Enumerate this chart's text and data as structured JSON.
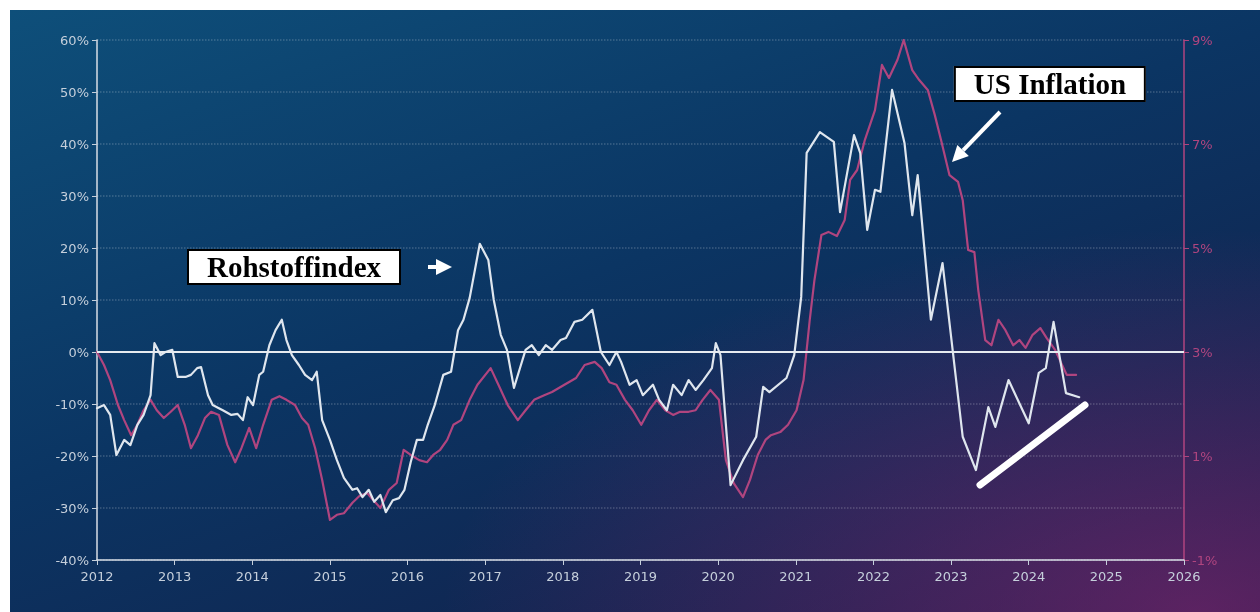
{
  "chart_data": {
    "type": "line",
    "xlim": [
      2012,
      2026
    ],
    "xticks": [
      2012,
      2013,
      2014,
      2015,
      2016,
      2017,
      2018,
      2019,
      2020,
      2021,
      2022,
      2023,
      2024,
      2025,
      2026
    ],
    "ylim": [
      -40,
      60
    ],
    "yticks": [
      {
        "value": -40,
        "label": "-40%"
      },
      {
        "value": -30,
        "label": "-30%"
      },
      {
        "value": -20,
        "label": "-20%"
      },
      {
        "value": -10,
        "label": "-10%"
      },
      {
        "value": 0,
        "label": "0%"
      },
      {
        "value": 10,
        "label": "10%"
      },
      {
        "value": 20,
        "label": "20%"
      },
      {
        "value": 30,
        "label": "30%"
      },
      {
        "value": 40,
        "label": "40%"
      },
      {
        "value": 50,
        "label": "50%"
      },
      {
        "value": 60,
        "label": "60%"
      }
    ],
    "y2lim": [
      -1,
      9
    ],
    "y2ticks": [
      {
        "value": -1,
        "label": "-1%"
      },
      {
        "value": 1,
        "label": "1%"
      },
      {
        "value": 3,
        "label": "3%"
      },
      {
        "value": 5,
        "label": "5%"
      },
      {
        "value": 7,
        "label": "7%"
      },
      {
        "value": 9,
        "label": "9%"
      }
    ],
    "grid": "y",
    "marker": "none",
    "line_style": "solid",
    "ref_lines": [
      {
        "axis": "y",
        "value": 0,
        "label": null,
        "color": "#e6ebf0"
      }
    ],
    "annotations": [
      "Rohstoffindex",
      "US Inflation"
    ],
    "series": [
      {
        "color": "#dfe6ee",
        "x": [
          2012.0,
          2012.09,
          2012.17,
          2012.25,
          2012.35,
          2012.43,
          2012.52,
          2012.6,
          2012.69,
          2012.74,
          2012.82,
          2012.88,
          2012.97,
          2013.04,
          2013.14,
          2013.21,
          2013.29,
          2013.34,
          2013.43,
          2013.49,
          2013.57,
          2013.62,
          2013.73,
          2013.81,
          2013.88,
          2013.94,
          2014.01,
          2014.09,
          2014.14,
          2014.22,
          2014.3,
          2014.38,
          2014.44,
          2014.51,
          2014.6,
          2014.68,
          2014.77,
          2014.83,
          2014.9,
          2015.0,
          2015.09,
          2015.18,
          2015.29,
          2015.35,
          2015.42,
          2015.5,
          2015.57,
          2015.65,
          2015.72,
          2015.81,
          2015.89,
          2015.96,
          2016.04,
          2016.12,
          2016.2,
          2016.26,
          2016.35,
          2016.46,
          2016.56,
          2016.65,
          2016.72,
          2016.8,
          2016.93,
          2017.04,
          2017.11,
          2017.2,
          2017.28,
          2017.37,
          2017.46,
          2017.52,
          2017.6,
          2017.69,
          2017.78,
          2017.86,
          2017.97,
          2018.04,
          2018.15,
          2018.25,
          2018.38,
          2018.49,
          2018.6,
          2018.69,
          2018.75,
          2018.86,
          2018.95,
          2019.03,
          2019.16,
          2019.24,
          2019.34,
          2019.42,
          2019.53,
          2019.62,
          2019.71,
          2019.81,
          2019.92,
          2019.97,
          2020.03,
          2020.16,
          2020.32,
          2020.49,
          2020.58,
          2020.66,
          2020.88,
          2020.98,
          2021.07,
          2021.14,
          2021.31,
          2021.49,
          2021.57,
          2021.75,
          2021.83,
          2021.92,
          2022.02,
          2022.09,
          2022.24,
          2022.4,
          2022.5,
          2022.57,
          2022.74,
          2022.89,
          2023.02,
          2023.15,
          2023.32,
          2023.48,
          2023.57,
          2023.74,
          2024.0,
          2024.13,
          2024.22,
          2024.32,
          2024.48,
          2024.65
        ],
        "values": [
          -10.8,
          -10.2,
          -12.1,
          -19.8,
          -16.9,
          -17.9,
          -14.0,
          -12.1,
          -8.3,
          1.7,
          -0.6,
          0,
          0.4,
          -4.8,
          -4.8,
          -4.4,
          -3.1,
          -2.9,
          -8.3,
          -10.2,
          -10.8,
          -11.2,
          -12.1,
          -11.9,
          -13.1,
          -8.7,
          -10.2,
          -4.4,
          -3.8,
          1.3,
          4.2,
          6.2,
          2.3,
          -0.6,
          -2.5,
          -4.4,
          -5.4,
          -3.8,
          -13.1,
          -16.9,
          -20.8,
          -24.2,
          -26.5,
          -26.2,
          -27.9,
          -26.5,
          -28.8,
          -27.5,
          -30.8,
          -28.5,
          -28.1,
          -26.5,
          -21.2,
          -16.9,
          -16.9,
          -14.0,
          -10.2,
          -4.4,
          -3.8,
          4.2,
          6.2,
          10.4,
          20.8,
          17.7,
          10.0,
          3.3,
          0.4,
          -6.9,
          -2.5,
          0.4,
          1.3,
          -0.6,
          1.3,
          0.4,
          2.3,
          2.7,
          5.8,
          6.2,
          8.1,
          0,
          -2.5,
          0,
          -1.9,
          -6.3,
          -5.4,
          -8.3,
          -6.3,
          -9.2,
          -11.2,
          -6.3,
          -8.3,
          -5.4,
          -7.3,
          -5.4,
          -3.1,
          1.7,
          -0.6,
          -25.6,
          -20.8,
          -16.3,
          -6.7,
          -7.7,
          -5.0,
          -0.6,
          10.6,
          38.3,
          42.3,
          40.4,
          26.9,
          41.7,
          38.3,
          23.5,
          31.2,
          30.8,
          50.4,
          40.2,
          26.3,
          34.0,
          6.2,
          17.1,
          0.4,
          -16.3,
          -22.7,
          -10.6,
          -14.4,
          -5.4,
          -13.7,
          -4.0,
          -3.1,
          5.8,
          -7.9,
          -8.7
        ]
      },
      {
        "color": "#b0457f",
        "axis": "y2",
        "x": [
          2012.0,
          2012.09,
          2012.17,
          2012.27,
          2012.35,
          2012.44,
          2012.52,
          2012.6,
          2012.69,
          2012.77,
          2012.86,
          2012.95,
          2013.04,
          2013.13,
          2013.21,
          2013.3,
          2013.39,
          2013.47,
          2013.57,
          2013.68,
          2013.78,
          2013.86,
          2013.96,
          2014.05,
          2014.14,
          2014.25,
          2014.35,
          2014.44,
          2014.55,
          2014.64,
          2014.72,
          2014.81,
          2014.9,
          2015.0,
          2015.09,
          2015.18,
          2015.29,
          2015.38,
          2015.48,
          2015.56,
          2015.65,
          2015.76,
          2015.86,
          2015.95,
          2016.04,
          2016.15,
          2016.25,
          2016.33,
          2016.42,
          2016.51,
          2016.59,
          2016.69,
          2016.8,
          2016.9,
          2017.07,
          2017.17,
          2017.29,
          2017.42,
          2017.52,
          2017.63,
          2017.76,
          2017.86,
          2018.02,
          2018.17,
          2018.28,
          2018.41,
          2018.5,
          2018.6,
          2018.69,
          2018.8,
          2018.9,
          2019.01,
          2019.11,
          2019.21,
          2019.32,
          2019.42,
          2019.51,
          2019.62,
          2019.71,
          2019.8,
          2019.9,
          2020.01,
          2020.1,
          2020.2,
          2020.32,
          2020.41,
          2020.51,
          2020.61,
          2020.68,
          2020.8,
          2020.9,
          2021.01,
          2021.1,
          2021.18,
          2021.24,
          2021.33,
          2021.42,
          2021.53,
          2021.63,
          2021.7,
          2021.79,
          2021.89,
          2022.02,
          2022.11,
          2022.2,
          2022.31,
          2022.39,
          2022.5,
          2022.59,
          2022.7,
          2022.79,
          2022.87,
          2022.98,
          2023.09,
          2023.15,
          2023.22,
          2023.3,
          2023.35,
          2023.44,
          2023.52,
          2023.61,
          2023.7,
          2023.8,
          2023.88,
          2023.96,
          2024.05,
          2024.15,
          2024.23,
          2024.34,
          2024.49,
          2024.61
        ],
        "values": [
          3.0,
          2.75,
          2.46,
          1.98,
          1.69,
          1.4,
          1.6,
          1.88,
          2.08,
          1.88,
          1.73,
          1.85,
          1.98,
          1.6,
          1.15,
          1.4,
          1.73,
          1.85,
          1.79,
          1.21,
          0.88,
          1.15,
          1.54,
          1.15,
          1.6,
          2.08,
          2.15,
          2.08,
          1.98,
          1.73,
          1.6,
          1.15,
          0.54,
          -0.23,
          -0.13,
          -0.1,
          0.1,
          0.23,
          0.29,
          0.15,
          0.0,
          0.35,
          0.48,
          1.12,
          1.02,
          0.92,
          0.88,
          1.02,
          1.12,
          1.31,
          1.6,
          1.69,
          2.08,
          2.37,
          2.69,
          2.37,
          1.98,
          1.69,
          1.88,
          2.08,
          2.17,
          2.23,
          2.37,
          2.5,
          2.75,
          2.81,
          2.69,
          2.42,
          2.37,
          2.08,
          1.88,
          1.6,
          1.88,
          2.08,
          1.88,
          1.79,
          1.85,
          1.85,
          1.88,
          2.08,
          2.27,
          2.08,
          0.92,
          0.48,
          0.21,
          0.54,
          1.02,
          1.31,
          1.4,
          1.46,
          1.6,
          1.88,
          2.46,
          3.62,
          4.38,
          5.25,
          5.31,
          5.23,
          5.54,
          6.31,
          6.5,
          7.08,
          7.65,
          8.52,
          8.27,
          8.62,
          9.0,
          8.42,
          8.23,
          8.04,
          7.56,
          7.08,
          6.4,
          6.27,
          5.92,
          4.96,
          4.92,
          4.19,
          3.23,
          3.13,
          3.62,
          3.42,
          3.13,
          3.23,
          3.08,
          3.33,
          3.46,
          3.27,
          3.04,
          2.56,
          2.56
        ]
      }
    ]
  }
}
